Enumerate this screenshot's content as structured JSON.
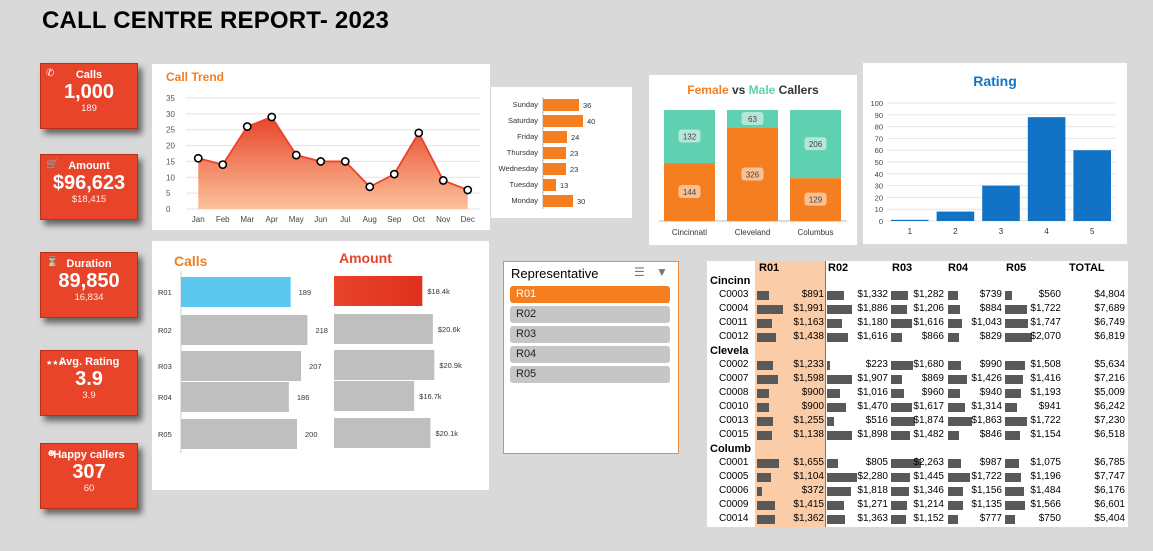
{
  "report_title": "CALL CENTRE REPORT- 2023",
  "colors": {
    "accent": "#e8442a",
    "orange": "#f47e20",
    "blue": "#1273c6",
    "teal": "#5fd0b0",
    "light_blue": "#5bc8f0",
    "grey": "#bfbfbf"
  },
  "kpis": [
    {
      "label": "Calls",
      "value": "1,000",
      "sub": "189",
      "icon": "phone-icon"
    },
    {
      "label": "Amount",
      "value": "$96,623",
      "sub": "$18,415",
      "icon": "cart-icon"
    },
    {
      "label": "Duration",
      "value": "89,850",
      "sub": "16,834",
      "icon": "hourglass-icon"
    },
    {
      "label": "Avg. Rating",
      "value": "3.9",
      "sub": "3.9",
      "icon": "stars-icon"
    },
    {
      "label": "Happy callers",
      "value": "307",
      "sub": "60",
      "icon": "smile-icon"
    }
  ],
  "call_trend": {
    "title": "Call Trend",
    "chart_data": {
      "type": "area",
      "categories": [
        "Jan",
        "Feb",
        "Mar",
        "Apr",
        "May",
        "Jun",
        "Jul",
        "Aug",
        "Sep",
        "Oct",
        "Nov",
        "Dec"
      ],
      "values": [
        16,
        14,
        26,
        29,
        17,
        15,
        15,
        7,
        11,
        24,
        9,
        6
      ],
      "ylim": [
        0,
        35
      ],
      "yticks": [
        0,
        5,
        10,
        15,
        20,
        25,
        30,
        35
      ]
    }
  },
  "weekday": {
    "chart_data": {
      "type": "bar",
      "categories": [
        "Sunday",
        "Saturday",
        "Friday",
        "Thursday",
        "Wednesday",
        "Tuesday",
        "Monday"
      ],
      "values": [
        36,
        40,
        24,
        23,
        23,
        13,
        30
      ]
    }
  },
  "gender": {
    "title_female": "Female",
    "title_vs": " vs ",
    "title_male": "Male",
    "title_rest": " Callers",
    "chart_data": {
      "type": "bar",
      "categories": [
        "Cincinnati",
        "Cleveland",
        "Columbus"
      ],
      "series": [
        {
          "name": "Female",
          "values": [
            144,
            326,
            129
          ]
        },
        {
          "name": "Male",
          "values": [
            132,
            63,
            206
          ]
        }
      ]
    }
  },
  "rating": {
    "title": "Rating",
    "chart_data": {
      "type": "bar",
      "categories": [
        "1",
        "2",
        "3",
        "4",
        "5"
      ],
      "values": [
        1,
        8,
        30,
        88,
        60
      ],
      "ylim": [
        0,
        100
      ],
      "yticks": [
        0,
        10,
        20,
        30,
        40,
        50,
        60,
        70,
        80,
        90,
        100
      ]
    }
  },
  "calls_rep": {
    "title": "Calls",
    "chart_data": {
      "type": "bar",
      "categories": [
        "R01",
        "R02",
        "R03",
        "R04",
        "R05"
      ],
      "values": [
        189,
        218,
        207,
        186,
        200
      ]
    }
  },
  "amount_rep": {
    "title": "Amount",
    "chart_data": {
      "type": "bar",
      "categories": [
        "R01",
        "R02",
        "R03",
        "R04",
        "R05"
      ],
      "values": [
        18.4,
        20.6,
        20.9,
        16.7,
        20.1
      ],
      "labels": [
        "$18.4k",
        "$20.6k",
        "$20.9k",
        "$16.7k",
        "$20.1k"
      ]
    }
  },
  "slicer": {
    "title": "Representative",
    "items": [
      "R01",
      "R02",
      "R03",
      "R04",
      "R05"
    ],
    "selected": "R01"
  },
  "pivot": {
    "columns": [
      "R01",
      "R02",
      "R03",
      "R04",
      "R05",
      "TOTAL"
    ],
    "groups": [
      {
        "name": "Cincinn",
        "rows": [
          {
            "label": "C0003",
            "values": [
              "$891",
              "$1,332",
              "$1,282",
              "$739",
              "$560",
              "$4,804"
            ],
            "nums": [
              891,
              1332,
              1282,
              739,
              560
            ]
          },
          {
            "label": "C0004",
            "values": [
              "$1,991",
              "$1,886",
              "$1,206",
              "$884",
              "$1,722",
              "$7,689"
            ],
            "nums": [
              1991,
              1886,
              1206,
              884,
              1722
            ]
          },
          {
            "label": "C0011",
            "values": [
              "$1,163",
              "$1,180",
              "$1,616",
              "$1,043",
              "$1,747",
              "$6,749"
            ],
            "nums": [
              1163,
              1180,
              1616,
              1043,
              1747
            ]
          },
          {
            "label": "C0012",
            "values": [
              "$1,438",
              "$1,616",
              "$866",
              "$829",
              "$2,070",
              "$6,819"
            ],
            "nums": [
              1438,
              1616,
              866,
              829,
              2070
            ]
          }
        ]
      },
      {
        "name": "Clevela",
        "rows": [
          {
            "label": "C0002",
            "values": [
              "$1,233",
              "$223",
              "$1,680",
              "$990",
              "$1,508",
              "$5,634"
            ],
            "nums": [
              1233,
              223,
              1680,
              990,
              1508
            ]
          },
          {
            "label": "C0007",
            "values": [
              "$1,598",
              "$1,907",
              "$869",
              "$1,426",
              "$1,416",
              "$7,216"
            ],
            "nums": [
              1598,
              1907,
              869,
              1426,
              1416
            ]
          },
          {
            "label": "C0008",
            "values": [
              "$900",
              "$1,016",
              "$960",
              "$940",
              "$1,193",
              "$5,009"
            ],
            "nums": [
              900,
              1016,
              960,
              940,
              1193
            ]
          },
          {
            "label": "C0010",
            "values": [
              "$900",
              "$1,470",
              "$1,617",
              "$1,314",
              "$941",
              "$6,242"
            ],
            "nums": [
              900,
              1470,
              1617,
              1314,
              941
            ]
          },
          {
            "label": "C0013",
            "values": [
              "$1,255",
              "$516",
              "$1,874",
              "$1,863",
              "$1,722",
              "$7,230"
            ],
            "nums": [
              1255,
              516,
              1874,
              1863,
              1722
            ]
          },
          {
            "label": "C0015",
            "values": [
              "$1,138",
              "$1,898",
              "$1,482",
              "$846",
              "$1,154",
              "$6,518"
            ],
            "nums": [
              1138,
              1898,
              1482,
              846,
              1154
            ]
          }
        ]
      },
      {
        "name": "Columb",
        "rows": [
          {
            "label": "C0001",
            "values": [
              "$1,655",
              "$805",
              "$2,263",
              "$987",
              "$1,075",
              "$6,785"
            ],
            "nums": [
              1655,
              805,
              2263,
              987,
              1075
            ]
          },
          {
            "label": "C0005",
            "values": [
              "$1,104",
              "$2,280",
              "$1,445",
              "$1,722",
              "$1,196",
              "$7,747"
            ],
            "nums": [
              1104,
              2280,
              1445,
              1722,
              1196
            ]
          },
          {
            "label": "C0006",
            "values": [
              "$372",
              "$1,818",
              "$1,346",
              "$1,156",
              "$1,484",
              "$6,176"
            ],
            "nums": [
              372,
              1818,
              1346,
              1156,
              1484
            ]
          },
          {
            "label": "C0009",
            "values": [
              "$1,415",
              "$1,271",
              "$1,214",
              "$1,135",
              "$1,566",
              "$6,601"
            ],
            "nums": [
              1415,
              1271,
              1214,
              1135,
              1566
            ]
          },
          {
            "label": "C0014",
            "values": [
              "$1,362",
              "$1,363",
              "$1,152",
              "$777",
              "$750",
              "$5,404"
            ],
            "nums": [
              1362,
              1363,
              1152,
              777,
              750
            ]
          }
        ]
      }
    ]
  }
}
